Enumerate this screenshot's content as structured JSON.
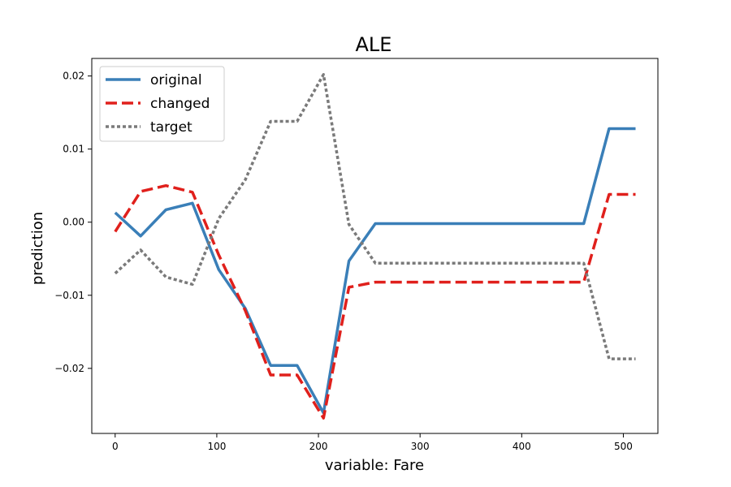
{
  "chart_data": {
    "type": "line",
    "title": "ALE",
    "xlabel": "variable: Fare",
    "ylabel": "prediction",
    "xlim": [
      -23,
      534
    ],
    "ylim": [
      -0.0289,
      0.0224
    ],
    "xticks": [
      0,
      100,
      200,
      300,
      400,
      500
    ],
    "yticks": [
      -0.02,
      -0.01,
      0.0,
      0.01,
      0.02
    ],
    "ytick_labels": [
      "−0.02",
      "−0.01",
      "0.00",
      "0.01",
      "0.02"
    ],
    "grid": false,
    "legend_position": "top-left",
    "series": [
      {
        "name": "original",
        "color": "#3a7fb8",
        "dash": "solid",
        "x": [
          0,
          25,
          50,
          76,
          102,
          128,
          153,
          179,
          205,
          230,
          256,
          282,
          307,
          333,
          358,
          384,
          410,
          435,
          461,
          486,
          512
        ],
        "y": [
          0.0013,
          -0.0019,
          0.0017,
          0.0026,
          -0.0065,
          -0.0118,
          -0.0196,
          -0.0196,
          -0.0261,
          -0.0053,
          -0.0002,
          -0.0002,
          -0.0002,
          -0.0002,
          -0.0002,
          -0.0002,
          -0.0002,
          -0.0002,
          -0.0002,
          0.0128,
          0.0128
        ]
      },
      {
        "name": "changed",
        "color": "#e0201c",
        "dash": "dashed",
        "x": [
          0,
          25,
          50,
          76,
          102,
          128,
          153,
          179,
          205,
          230,
          256,
          282,
          307,
          333,
          358,
          384,
          410,
          435,
          461,
          486,
          512
        ],
        "y": [
          -0.0013,
          0.0042,
          0.005,
          0.0041,
          -0.0045,
          -0.0121,
          -0.0209,
          -0.0209,
          -0.0268,
          -0.0089,
          -0.0082,
          -0.0082,
          -0.0082,
          -0.0082,
          -0.0082,
          -0.0082,
          -0.0082,
          -0.0082,
          -0.0082,
          0.0038,
          0.0038
        ]
      },
      {
        "name": "target",
        "color": "#7a7a7a",
        "dash": "dotted",
        "x": [
          0,
          25,
          50,
          76,
          102,
          128,
          153,
          179,
          205,
          230,
          256,
          282,
          307,
          333,
          358,
          384,
          410,
          435,
          461,
          486,
          512
        ],
        "y": [
          -0.007,
          -0.0038,
          -0.0075,
          -0.0085,
          0.0005,
          0.0058,
          0.0138,
          0.0138,
          0.0202,
          -0.0003,
          -0.0056,
          -0.0056,
          -0.0056,
          -0.0056,
          -0.0056,
          -0.0056,
          -0.0056,
          -0.0056,
          -0.0056,
          -0.0187,
          -0.0187
        ]
      }
    ]
  }
}
